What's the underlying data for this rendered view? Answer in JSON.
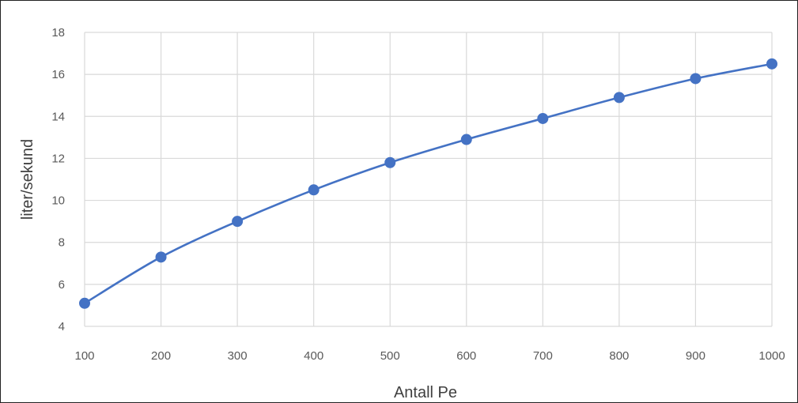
{
  "chart_data": {
    "type": "line",
    "title": "",
    "xlabel": "Antall Pe",
    "ylabel": "liter/sekund",
    "x": [
      100,
      200,
      300,
      400,
      500,
      600,
      700,
      800,
      900,
      1000
    ],
    "series": [
      {
        "values": [
          5.1,
          7.3,
          9.0,
          10.5,
          11.8,
          12.9,
          13.9,
          14.9,
          15.8,
          16.5
        ]
      }
    ],
    "xlim": [
      100,
      1000
    ],
    "ylim": [
      4,
      18
    ],
    "yticks": [
      4,
      6,
      8,
      10,
      12,
      14,
      16,
      18
    ],
    "xticks": [
      100,
      200,
      300,
      400,
      500,
      600,
      700,
      800,
      900,
      1000
    ],
    "grid": true,
    "smooth": true,
    "legend": "none",
    "colors": {
      "line": "#4472C4",
      "marker": "#4472C4",
      "grid": "#D9D9D9",
      "tick_text": "#595959"
    }
  }
}
